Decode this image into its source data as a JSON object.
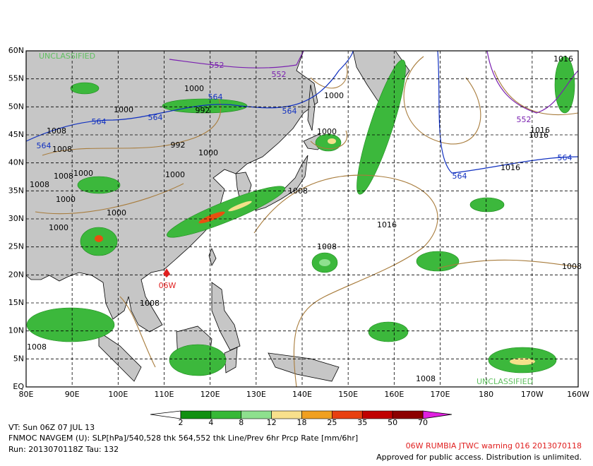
{
  "map": {
    "lat_labels": [
      "60N",
      "55N",
      "50N",
      "45N",
      "40N",
      "35N",
      "30N",
      "25N",
      "20N",
      "15N",
      "10N",
      "5N",
      "EQ"
    ],
    "lon_labels": [
      "80E",
      "90E",
      "100E",
      "110E",
      "120E",
      "130E",
      "140E",
      "150E",
      "160E",
      "170E",
      "180",
      "170W",
      "160W"
    ],
    "watermarks": [
      "UNCLASSIFIED",
      "UNCLASSIFIED"
    ],
    "contour_labels": [
      "552",
      "552",
      "564",
      "564",
      "564",
      "564",
      "564",
      "1000",
      "992",
      "1000",
      "1008",
      "1008",
      "992",
      "1000",
      "1008",
      "1000",
      "1000",
      "1008",
      "1000",
      "1000",
      "1000",
      "1008",
      "1016",
      "1008",
      "1000",
      "1000",
      "1016",
      "552",
      "1016",
      "564",
      "564",
      "1016",
      "1008",
      "1008",
      "1008",
      "1016",
      "1008"
    ],
    "storm_label": "06W"
  },
  "colorbar": {
    "labels": [
      2,
      4,
      8,
      12,
      18,
      25,
      35,
      50,
      70
    ]
  },
  "footer": {
    "valid_time": "VT: Sun 06Z 07 JUL 13",
    "model": "FNMOC NAVGEM (U): SLP[hPa]/540,528 thk 564,552 thk Line/Prev 6hr Prcp Rate [mm/6hr]",
    "run": "Run: 2013070118Z Tau: 132",
    "warning": "06W RUMBIA JTWC warning 016 2013070118",
    "release": "Approved for public access. Distribution is unlimited."
  }
}
